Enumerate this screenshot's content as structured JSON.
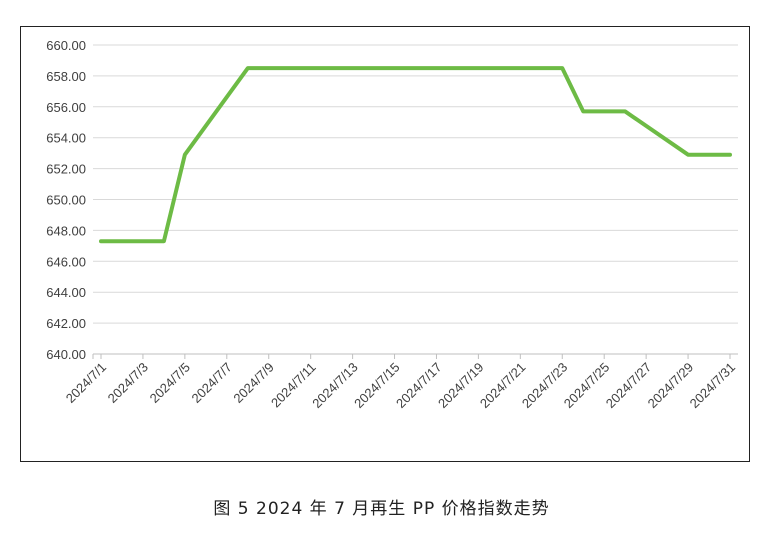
{
  "caption": "图 5  2024 年 7 月再生 PP 价格指数走势",
  "chart_data": {
    "type": "line",
    "title": "",
    "xlabel": "",
    "ylabel": "",
    "ylim": [
      640,
      660
    ],
    "y_ticks": [
      "640.00",
      "642.00",
      "644.00",
      "646.00",
      "648.00",
      "650.00",
      "652.00",
      "654.00",
      "656.00",
      "658.00",
      "660.00"
    ],
    "x_tick_labels": [
      "2024/7/1",
      "2024/7/3",
      "2024/7/5",
      "2024/7/7",
      "2024/7/9",
      "2024/7/11",
      "2024/7/13",
      "2024/7/15",
      "2024/7/17",
      "2024/7/19",
      "2024/7/21",
      "2024/7/23",
      "2024/7/25",
      "2024/7/27",
      "2024/7/29",
      "2024/7/31"
    ],
    "grid": true,
    "legend": "none",
    "line_color": "#6dbb45",
    "series": [
      {
        "points": [
          [
            "2024/7/1",
            647.3
          ],
          [
            "2024/7/4",
            647.3
          ],
          [
            "2024/7/5",
            652.9
          ],
          [
            "2024/7/8",
            658.5
          ],
          [
            "2024/7/23",
            658.5
          ],
          [
            "2024/7/24",
            655.7
          ],
          [
            "2024/7/26",
            655.7
          ],
          [
            "2024/7/29",
            652.9
          ],
          [
            "2024/7/31",
            652.9
          ]
        ]
      }
    ]
  }
}
